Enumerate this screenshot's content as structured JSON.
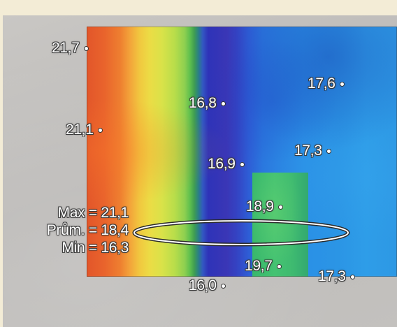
{
  "probes": [
    {
      "id": "p1",
      "value": "21,7"
    },
    {
      "id": "p2",
      "value": "21,1"
    },
    {
      "id": "p3",
      "value": "16,8"
    },
    {
      "id": "p4",
      "value": "16,9"
    },
    {
      "id": "p5",
      "value": "17,6"
    },
    {
      "id": "p6",
      "value": "17,3"
    },
    {
      "id": "p7",
      "value": "18,9"
    },
    {
      "id": "p8",
      "value": "19,7"
    },
    {
      "id": "p9",
      "value": "16,0"
    },
    {
      "id": "p10",
      "value": "17,3"
    }
  ],
  "area_stats": {
    "max": "Max = 21,1",
    "avg": "Prům. = 18,4",
    "min": "Min = 16,3"
  },
  "colors": {
    "hot": "#e2562a",
    "warm": "#ecdc45",
    "mid": "#5dbf4e",
    "cold": "#2e33b8",
    "cool": "#2a90e6",
    "label_text": "#ffffff",
    "label_outline": "#3b3b3b"
  },
  "icons": {
    "measurement_point": "point-marker-icon",
    "measurement_area": "ellipse-area-icon"
  }
}
